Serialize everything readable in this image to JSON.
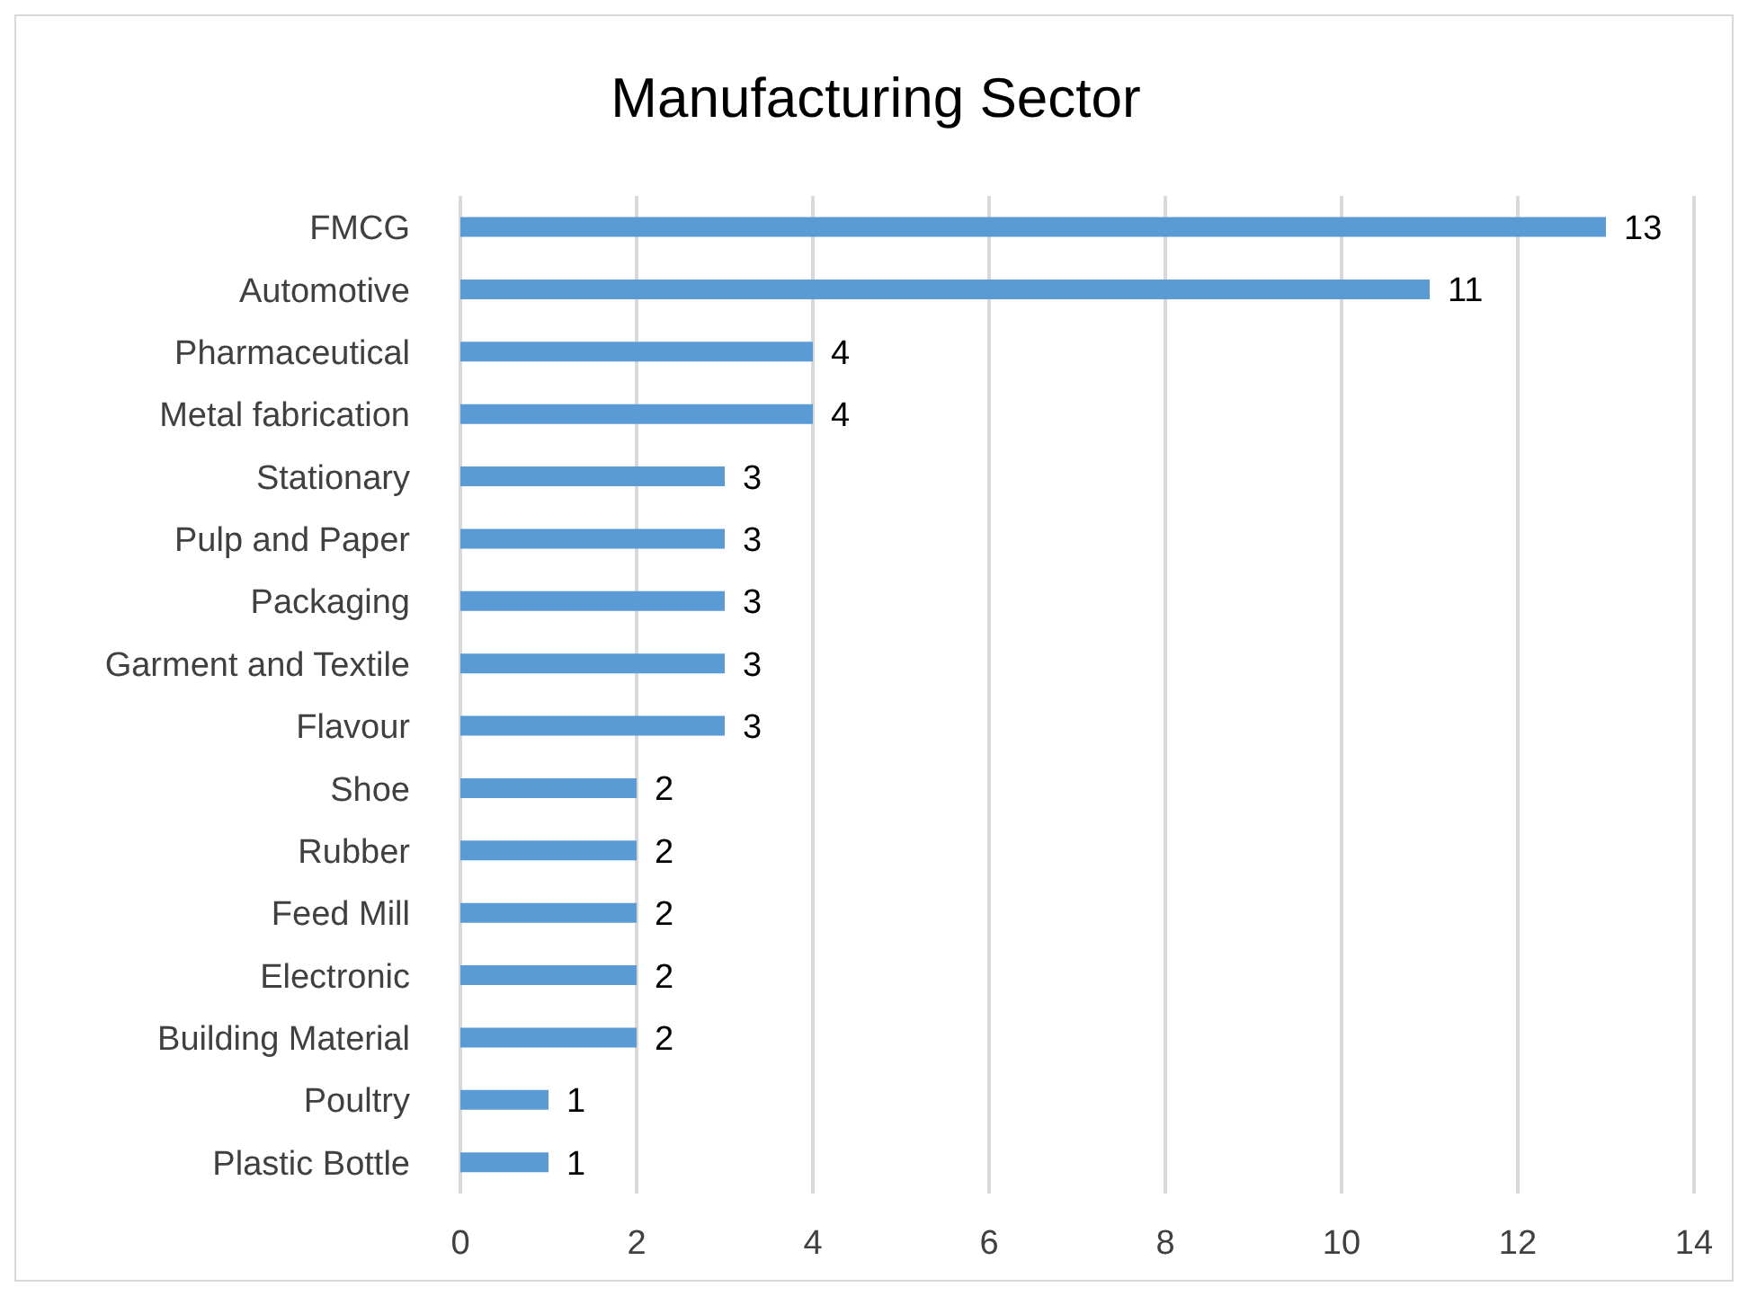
{
  "chart_data": {
    "type": "bar",
    "orientation": "horizontal",
    "title": "Manufacturing Sector",
    "categories": [
      "FMCG",
      "Automotive",
      "Pharmaceutical",
      "Metal fabrication",
      "Stationary",
      "Pulp and Paper",
      "Packaging",
      "Garment and Textile",
      "Flavour",
      "Shoe",
      "Rubber",
      "Feed Mill",
      "Electronic",
      "Building Material",
      "Poultry",
      "Plastic Bottle"
    ],
    "values": [
      13,
      11,
      4,
      4,
      3,
      3,
      3,
      3,
      3,
      2,
      2,
      2,
      2,
      2,
      1,
      1
    ],
    "color": "#5b9bd5",
    "xlim": [
      0,
      14
    ],
    "xticks": [
      0,
      2,
      4,
      6,
      8,
      10,
      12,
      14
    ],
    "grid": "x",
    "data_labels": true,
    "legend": false
  }
}
